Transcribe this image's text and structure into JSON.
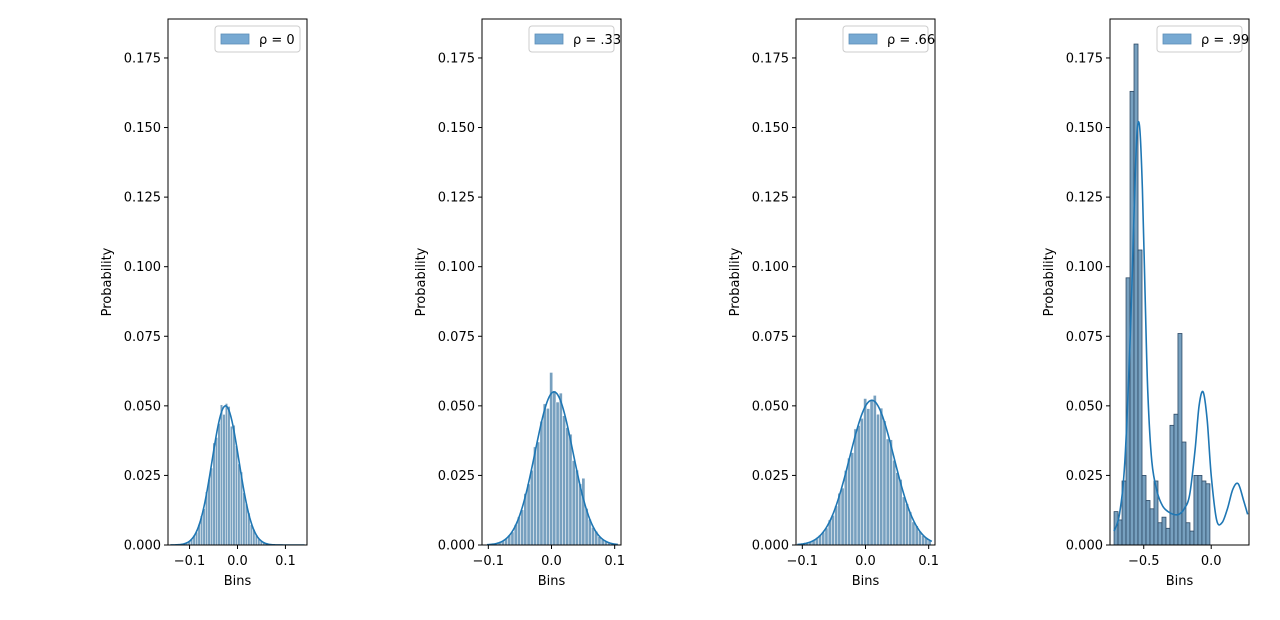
{
  "chart_data": [
    {
      "type": "histogram",
      "legend": {
        "label": "ρ = 0",
        "location": "upper right"
      },
      "xlabel": "Bins",
      "ylabel": "Probability",
      "xlim": [
        -0.145,
        0.145
      ],
      "ylim": [
        0,
        0.189
      ],
      "xticks": [
        -0.1,
        0.0,
        0.1
      ],
      "xtick_labels": [
        "−0.1",
        "0.0",
        "0.1"
      ],
      "yticks": [
        0,
        0.025,
        0.05,
        0.075,
        0.1,
        0.125,
        0.15,
        0.175
      ],
      "ytick_labels": [
        "0.000",
        "0.025",
        "0.050",
        "0.075",
        "0.100",
        "0.125",
        "0.150",
        "0.175"
      ],
      "kde_shape": {
        "components": [
          {
            "weight": 0.05,
            "mu": -0.025,
            "sigma": 0.028
          }
        ],
        "x_range": [
          -0.14,
          0.14
        ]
      },
      "bins": {
        "start": -0.14,
        "width": 0.0052,
        "count": 54
      }
    },
    {
      "type": "histogram",
      "legend": {
        "label": "ρ = .33",
        "location": "upper right"
      },
      "xlabel": "Bins",
      "ylabel": "Probability",
      "xlim": [
        -0.11,
        0.11
      ],
      "ylim": [
        0,
        0.189
      ],
      "xticks": [
        -0.1,
        0.0,
        0.1
      ],
      "xtick_labels": [
        "−0.1",
        "0.0",
        "0.1"
      ],
      "yticks": [
        0,
        0.025,
        0.05,
        0.075,
        0.1,
        0.125,
        0.15,
        0.175
      ],
      "ytick_labels": [
        "0.000",
        "0.025",
        "0.050",
        "0.075",
        "0.100",
        "0.125",
        "0.150",
        "0.175"
      ],
      "kde_shape": {
        "components": [
          {
            "weight": 0.055,
            "mu": 0.004,
            "sigma": 0.03
          }
        ],
        "x_range": [
          -0.102,
          0.105
        ]
      },
      "bins": {
        "start": -0.1,
        "width": 0.0051,
        "count": 40
      },
      "highlight_bars": [
        {
          "x": 0.002,
          "value": 0.062
        },
        {
          "x": 0.048,
          "value": 0.024
        }
      ]
    },
    {
      "type": "histogram",
      "legend": {
        "label": "ρ = .66",
        "location": "upper right"
      },
      "xlabel": "Bins",
      "ylabel": "Probability",
      "xlim": [
        -0.11,
        0.11
      ],
      "ylim": [
        0,
        0.189
      ],
      "xticks": [
        -0.1,
        0.0,
        0.1
      ],
      "xtick_labels": [
        "−0.1",
        "0.0",
        "0.1"
      ],
      "yticks": [
        0,
        0.025,
        0.05,
        0.075,
        0.1,
        0.125,
        0.15,
        0.175
      ],
      "ytick_labels": [
        "0.000",
        "0.025",
        "0.050",
        "0.075",
        "0.100",
        "0.125",
        "0.150",
        "0.175"
      ],
      "kde_shape": {
        "components": [
          {
            "weight": 0.052,
            "mu": 0.01,
            "sigma": 0.035
          }
        ],
        "x_range": [
          -0.108,
          0.105
        ]
      },
      "bins": {
        "start": -0.1,
        "width": 0.0051,
        "count": 40
      }
    },
    {
      "type": "histogram",
      "legend": {
        "label": "ρ = .99",
        "location": "upper right"
      },
      "xlabel": "Bins",
      "ylabel": "Probability",
      "xlim": [
        -0.75,
        0.28
      ],
      "ylim": [
        0,
        0.189
      ],
      "xticks": [
        -0.5,
        0.0
      ],
      "xtick_labels": [
        "−0.5",
        "0.0"
      ],
      "yticks": [
        0,
        0.025,
        0.05,
        0.075,
        0.1,
        0.125,
        0.15,
        0.175
      ],
      "ytick_labels": [
        "0.000",
        "0.025",
        "0.050",
        "0.075",
        "0.100",
        "0.125",
        "0.150",
        "0.175"
      ],
      "bins": {
        "start": -0.72,
        "width": 0.0296
      },
      "values": [
        0.012,
        0.009,
        0.023,
        0.096,
        0.163,
        0.18,
        0.106,
        0.025,
        0.016,
        0.013,
        0.023,
        0.008,
        0.01,
        0.006,
        0.043,
        0.047,
        0.076,
        0.037,
        0.008,
        0.005,
        0.025,
        0.025,
        0.023,
        0.022
      ],
      "kde": {
        "x": [
          -0.72,
          -0.68,
          -0.64,
          -0.6,
          -0.57,
          -0.55,
          -0.53,
          -0.51,
          -0.49,
          -0.47,
          -0.44,
          -0.4,
          -0.36,
          -0.32,
          -0.28,
          -0.24,
          -0.2,
          -0.16,
          -0.12,
          -0.09,
          -0.06,
          -0.03,
          0.0,
          0.04,
          0.08,
          0.12,
          0.16,
          0.2,
          0.24,
          0.27
        ],
        "y": [
          0.005,
          0.011,
          0.03,
          0.075,
          0.122,
          0.148,
          0.15,
          0.128,
          0.09,
          0.055,
          0.03,
          0.019,
          0.014,
          0.012,
          0.011,
          0.011,
          0.013,
          0.018,
          0.034,
          0.05,
          0.055,
          0.045,
          0.025,
          0.009,
          0.008,
          0.013,
          0.02,
          0.022,
          0.016,
          0.011
        ]
      }
    }
  ]
}
